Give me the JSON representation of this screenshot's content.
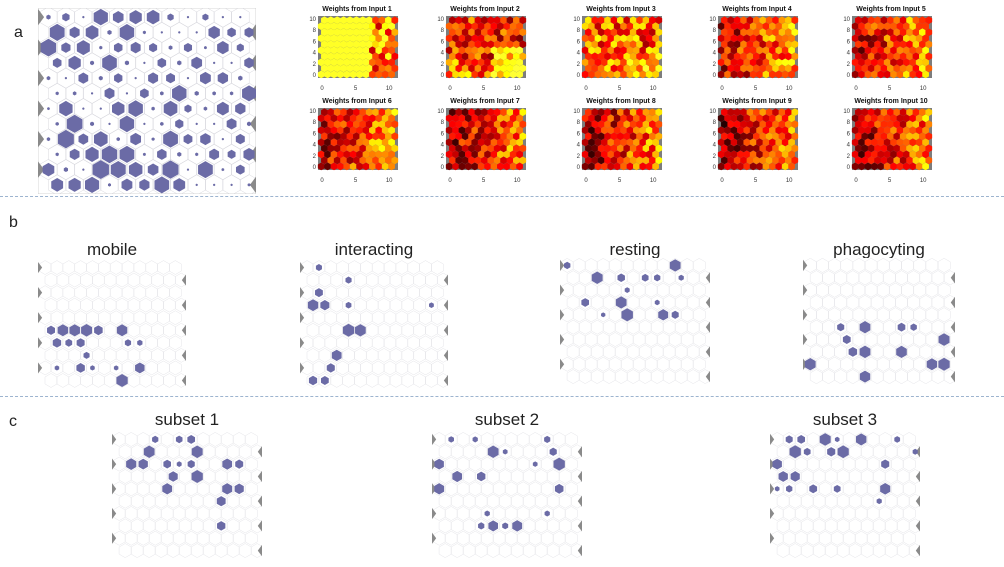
{
  "panels": {
    "a": "a",
    "b": "b",
    "c": "c"
  },
  "heatmaps": [
    {
      "title": "Weights from Input 1"
    },
    {
      "title": "Weights from Input 2"
    },
    {
      "title": "Weights from Input 3"
    },
    {
      "title": "Weights from Input 4"
    },
    {
      "title": "Weights from Input 5"
    },
    {
      "title": "Weights from Input 6"
    },
    {
      "title": "Weights from Input 7"
    },
    {
      "title": "Weights from Input 8"
    },
    {
      "title": "Weights from Input 9"
    },
    {
      "title": "Weights from Input 10"
    }
  ],
  "heatmap_axes": {
    "x_ticks": [
      "0",
      "5",
      "10"
    ],
    "y_ticks": [
      "0",
      "2",
      "4",
      "6",
      "8",
      "10"
    ]
  },
  "states": [
    {
      "title": "mobile"
    },
    {
      "title": "interacting"
    },
    {
      "title": "resting"
    },
    {
      "title": "phagocyting"
    }
  ],
  "subsets": [
    {
      "title": "subset 1"
    },
    {
      "title": "subset 2"
    },
    {
      "title": "subset 3"
    }
  ],
  "colors": {
    "hit": "#6b6ba6",
    "grid_line": "#d8d8dc",
    "frame": "#777777",
    "bg_panel": "#8a8a8a"
  }
}
